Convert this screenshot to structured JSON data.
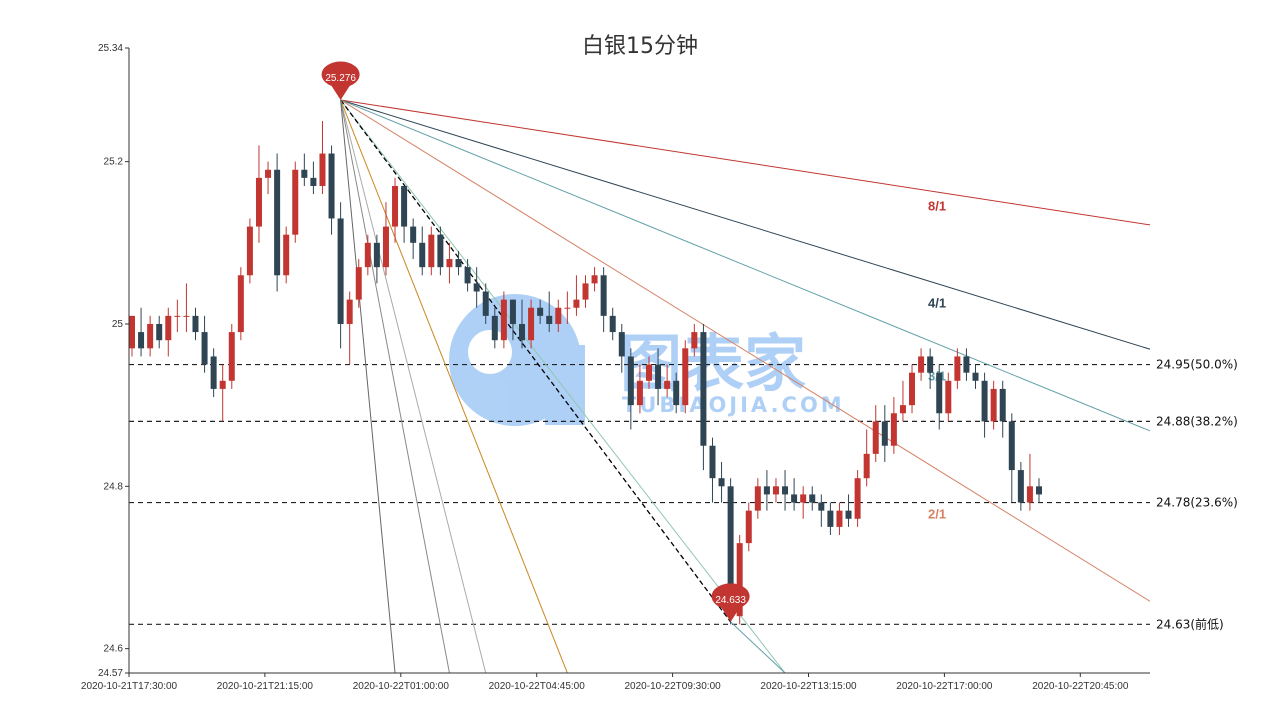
{
  "chart_data": {
    "type": "candlestick",
    "title": "白银15分钟",
    "watermark": {
      "main": "图表家",
      "sub": "TUBIAOJIA.COM"
    },
    "y_range": [
      24.57,
      25.34
    ],
    "y_ticks": [
      24.57,
      24.6,
      24.8,
      25,
      25.2,
      25.34
    ],
    "x_ticks": [
      "2020-10-21T17:30:00",
      "2020-10-21T21:15:00",
      "2020-10-22T01:00:00",
      "2020-10-22T04:45:00",
      "2020-10-22T09:30:00",
      "2020-10-22T13:15:00",
      "2020-10-22T17:00:00",
      "2020-10-22T20:45:00"
    ],
    "colors": {
      "up": "#c23531",
      "down": "#2f4554"
    },
    "candles": [
      [
        24.97,
        25.01,
        24.96,
        25.01
      ],
      [
        24.99,
        24.97,
        24.96,
        25.02
      ],
      [
        24.97,
        25.0,
        24.96,
        25.01
      ],
      [
        25.0,
        24.98,
        24.97,
        25.01
      ],
      [
        24.98,
        25.01,
        24.96,
        25.02
      ],
      [
        25.01,
        25.01,
        24.99,
        25.03
      ],
      [
        25.01,
        25.01,
        24.99,
        25.05
      ],
      [
        25.01,
        24.99,
        24.98,
        25.02
      ],
      [
        24.99,
        24.95,
        24.94,
        25.01
      ],
      [
        24.96,
        24.92,
        24.91,
        24.97
      ],
      [
        24.92,
        24.93,
        24.88,
        24.95
      ],
      [
        24.93,
        24.99,
        24.92,
        25.0
      ],
      [
        24.99,
        25.06,
        24.98,
        25.07
      ],
      [
        25.06,
        25.12,
        25.05,
        25.13
      ],
      [
        25.12,
        25.18,
        25.1,
        25.22
      ],
      [
        25.18,
        25.19,
        25.16,
        25.2
      ],
      [
        25.19,
        25.06,
        25.04,
        25.21
      ],
      [
        25.06,
        25.11,
        25.05,
        25.12
      ],
      [
        25.11,
        25.19,
        25.1,
        25.2
      ],
      [
        25.19,
        25.18,
        25.17,
        25.21
      ],
      [
        25.18,
        25.17,
        25.16,
        25.2
      ],
      [
        25.17,
        25.21,
        25.16,
        25.25
      ],
      [
        25.21,
        25.13,
        25.11,
        25.22
      ],
      [
        25.13,
        25.0,
        24.97,
        25.15
      ],
      [
        25.0,
        25.03,
        24.95,
        25.04
      ],
      [
        25.03,
        25.07,
        25.02,
        25.08
      ],
      [
        25.07,
        25.1,
        25.06,
        25.11
      ],
      [
        25.1,
        25.07,
        25.05,
        25.11
      ],
      [
        25.07,
        25.12,
        25.06,
        25.15
      ],
      [
        25.12,
        25.17,
        25.1,
        25.18
      ],
      [
        25.17,
        25.12,
        25.1,
        25.17
      ],
      [
        25.12,
        25.1,
        25.08,
        25.13
      ],
      [
        25.1,
        25.07,
        25.06,
        25.12
      ],
      [
        25.07,
        25.11,
        25.06,
        25.12
      ],
      [
        25.11,
        25.07,
        25.06,
        25.12
      ],
      [
        25.07,
        25.08,
        25.05,
        25.1
      ],
      [
        25.08,
        25.07,
        25.06,
        25.09
      ],
      [
        25.07,
        25.05,
        25.04,
        25.08
      ],
      [
        25.05,
        25.04,
        25.02,
        25.07
      ],
      [
        25.04,
        25.01,
        25.0,
        25.05
      ],
      [
        25.01,
        24.98,
        24.97,
        25.02
      ],
      [
        24.98,
        25.03,
        24.97,
        25.04
      ],
      [
        25.03,
        25.0,
        24.98,
        25.03
      ],
      [
        25.0,
        24.98,
        24.97,
        25.03
      ],
      [
        24.98,
        25.02,
        24.97,
        25.03
      ],
      [
        25.02,
        25.01,
        25.0,
        25.03
      ],
      [
        25.01,
        25.0,
        24.99,
        25.04
      ],
      [
        25.0,
        25.02,
        24.99,
        25.03
      ],
      [
        25.02,
        25.02,
        25.0,
        25.04
      ],
      [
        25.02,
        25.03,
        25.01,
        25.06
      ],
      [
        25.03,
        25.05,
        25.02,
        25.06
      ],
      [
        25.05,
        25.06,
        25.04,
        25.07
      ],
      [
        25.06,
        25.01,
        24.99,
        25.07
      ],
      [
        25.01,
        24.99,
        24.98,
        25.02
      ],
      [
        24.99,
        24.96,
        24.94,
        25.0
      ],
      [
        24.96,
        24.9,
        24.87,
        24.97
      ],
      [
        24.9,
        24.93,
        24.89,
        24.95
      ],
      [
        24.93,
        24.95,
        24.92,
        24.96
      ],
      [
        24.95,
        24.92,
        24.9,
        24.97
      ],
      [
        24.92,
        24.93,
        24.91,
        24.95
      ],
      [
        24.93,
        24.9,
        24.89,
        24.94
      ],
      [
        24.9,
        24.97,
        24.89,
        24.98
      ],
      [
        24.97,
        24.99,
        24.96,
        25.0
      ],
      [
        24.99,
        24.85,
        24.82,
        25.0
      ],
      [
        24.85,
        24.81,
        24.78,
        24.86
      ],
      [
        24.81,
        24.8,
        24.78,
        24.83
      ],
      [
        24.8,
        24.64,
        24.63,
        24.81
      ],
      [
        24.64,
        24.73,
        24.63,
        24.74
      ],
      [
        24.73,
        24.77,
        24.72,
        24.78
      ],
      [
        24.77,
        24.8,
        24.76,
        24.81
      ],
      [
        24.8,
        24.79,
        24.77,
        24.82
      ],
      [
        24.79,
        24.8,
        24.78,
        24.81
      ],
      [
        24.8,
        24.79,
        24.77,
        24.82
      ],
      [
        24.79,
        24.78,
        24.77,
        24.81
      ],
      [
        24.78,
        24.79,
        24.76,
        24.8
      ],
      [
        24.79,
        24.78,
        24.77,
        24.8
      ],
      [
        24.78,
        24.77,
        24.75,
        24.79
      ],
      [
        24.77,
        24.75,
        24.74,
        24.78
      ],
      [
        24.75,
        24.77,
        24.74,
        24.78
      ],
      [
        24.77,
        24.76,
        24.75,
        24.79
      ],
      [
        24.76,
        24.81,
        24.75,
        24.82
      ],
      [
        24.81,
        24.84,
        24.8,
        24.87
      ],
      [
        24.84,
        24.88,
        24.83,
        24.9
      ],
      [
        24.88,
        24.85,
        24.83,
        24.9
      ],
      [
        24.85,
        24.89,
        24.84,
        24.91
      ],
      [
        24.89,
        24.9,
        24.88,
        24.93
      ],
      [
        24.9,
        24.94,
        24.89,
        24.95
      ],
      [
        24.94,
        24.96,
        24.93,
        24.97
      ],
      [
        24.96,
        24.94,
        24.92,
        24.97
      ],
      [
        24.94,
        24.89,
        24.87,
        24.95
      ],
      [
        24.89,
        24.93,
        24.88,
        24.94
      ],
      [
        24.93,
        24.96,
        24.92,
        24.97
      ],
      [
        24.96,
        24.94,
        24.93,
        24.97
      ],
      [
        24.94,
        24.93,
        24.92,
        24.95
      ],
      [
        24.93,
        24.88,
        24.86,
        24.94
      ],
      [
        24.88,
        24.92,
        24.87,
        24.93
      ],
      [
        24.92,
        24.88,
        24.86,
        24.93
      ],
      [
        24.88,
        24.82,
        24.78,
        24.89
      ],
      [
        24.82,
        24.78,
        24.77,
        24.83
      ],
      [
        24.78,
        24.8,
        24.77,
        24.84
      ],
      [
        24.8,
        24.79,
        24.78,
        24.81
      ]
    ],
    "fibonacci_levels": [
      {
        "value": 24.95,
        "label": "24.95(50.0%)"
      },
      {
        "value": 24.88,
        "label": "24.88(38.2%)"
      },
      {
        "value": 24.78,
        "label": "24.78(23.6%)"
      },
      {
        "value": 24.63,
        "label": "24.63(前低)"
      }
    ],
    "markers": [
      {
        "label": "25.276",
        "value": 25.276,
        "index": 23
      },
      {
        "label": "24.633",
        "value": 24.633,
        "index": 66
      }
    ],
    "gann_fan": [
      {
        "label": "8/1",
        "color": "#c23531",
        "end_index": 125,
        "end_value": 25.1
      },
      {
        "label": "4/1",
        "color": "#2f4554",
        "end_index": 125,
        "end_value": 24.925
      },
      {
        "label": "3/1",
        "color": "#61a0a8",
        "end_index": 125,
        "end_value": 24.81
      },
      {
        "label": "2/1",
        "color": "#d48265",
        "end_index": 125,
        "end_value": 24.57
      },
      {
        "label": "",
        "color": "#91c7ae",
        "end_index": 72,
        "end_value": 24.57
      },
      {
        "label": "",
        "color": "#000000",
        "end_index": 66,
        "end_value": 24.633
      },
      {
        "label": "",
        "color": "#ca8622",
        "end_index": 48,
        "end_value": 24.57
      },
      {
        "label": "",
        "color": "#aaaaaa",
        "end_index": 39,
        "end_value": 24.57
      },
      {
        "label": "",
        "color": "#888888",
        "end_index": 35,
        "end_value": 24.57
      },
      {
        "label": "",
        "color": "#666666",
        "end_index": 29,
        "end_value": 24.57
      }
    ],
    "gann_label_values": {
      "8/1": 25.145,
      "4/1": 25.025,
      "3/1": 24.935,
      "2/1": 24.765
    }
  }
}
